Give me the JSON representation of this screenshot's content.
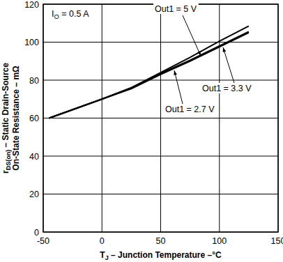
{
  "chart_data": {
    "type": "line",
    "x_label": [
      {
        "text": "T"
      },
      {
        "text": "J",
        "sub": true
      },
      {
        "text": " – Junction Temperature –°C"
      }
    ],
    "y_label": [
      [
        {
          "text": "r"
        },
        {
          "text": "DS(on)",
          "sub": true
        },
        {
          "text": " – Static Drain-Source"
        }
      ],
      [
        {
          "text": "On-State Resistance – mΩ"
        }
      ]
    ],
    "annotations": [
      {
        "segments": [
          {
            "text": "I"
          },
          {
            "text": "O",
            "sub": true
          },
          {
            "text": " = 0.5 A"
          }
        ]
      }
    ],
    "x": [
      -45,
      0,
      25,
      50,
      75,
      100,
      125
    ],
    "series": [
      {
        "name": "Out1 = 5 V",
        "color": "#000000",
        "values": [
          60,
          70,
          76,
          84,
          92,
          100.5,
          108.5
        ]
      },
      {
        "name": "Out1 = 3.3 V",
        "color": "#000000",
        "values": [
          60,
          70,
          76,
          83.5,
          90.5,
          98,
          105.5
        ]
      },
      {
        "name": "Out1 = 2.7 V",
        "color": "#000000",
        "values": [
          60,
          70,
          75.5,
          83,
          90,
          97.5,
          105
        ]
      }
    ],
    "xlim": [
      -50,
      150
    ],
    "ylim": [
      0,
      120
    ],
    "xticks": [
      -50,
      0,
      50,
      100,
      150
    ],
    "yticks": [
      0,
      20,
      40,
      60,
      80,
      100,
      120
    ],
    "grid": true
  }
}
